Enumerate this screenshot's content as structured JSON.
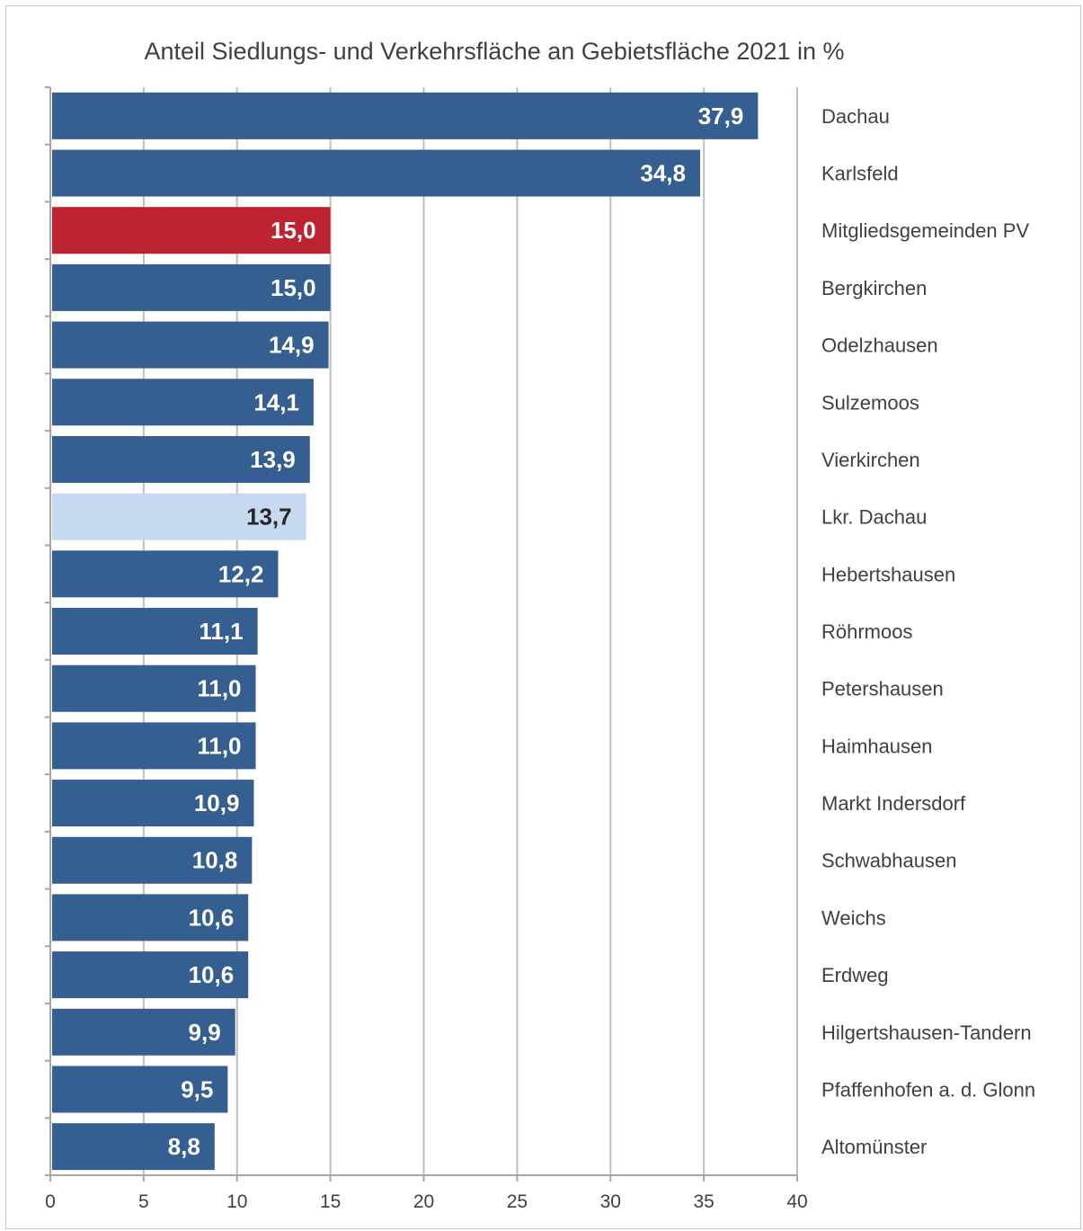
{
  "chart_data": {
    "type": "bar",
    "orientation": "horizontal",
    "title": "Anteil Siedlungs- und Verkehrsfläche an Gebietsfläche 2021 in %",
    "categories": [
      "Dachau",
      "Karlsfeld",
      "Mitgliedsgemeinden PV",
      "Bergkirchen",
      "Odelzhausen",
      "Sulzemoos",
      "Vierkirchen",
      "Lkr. Dachau",
      "Hebertshausen",
      "Röhrmoos",
      "Petershausen",
      "Haimhausen",
      "Markt Indersdorf",
      "Schwabhausen",
      "Weichs",
      "Erdweg",
      "Hilgertshausen-Tandern",
      "Pfaffenhofen a. d. Glonn",
      "Altomünster"
    ],
    "values": [
      37.9,
      34.8,
      15.0,
      15.0,
      14.9,
      14.1,
      13.9,
      13.7,
      12.2,
      11.1,
      11.0,
      11.0,
      10.9,
      10.8,
      10.6,
      10.6,
      9.9,
      9.5,
      8.8
    ],
    "value_labels": [
      "37,9",
      "34,8",
      "15,0",
      "15,0",
      "14,9",
      "14,1",
      "13,9",
      "13,7",
      "12,2",
      "11,1",
      "11,0",
      "11,0",
      "10,9",
      "10,8",
      "10,6",
      "10,6",
      "9,9",
      "9,5",
      "8,8"
    ],
    "bar_colors": [
      "#355f91",
      "#355f91",
      "#be2332",
      "#355f91",
      "#355f91",
      "#355f91",
      "#355f91",
      "#c6d9f0",
      "#355f91",
      "#355f91",
      "#355f91",
      "#355f91",
      "#355f91",
      "#355f91",
      "#355f91",
      "#355f91",
      "#355f91",
      "#355f91",
      "#355f91"
    ],
    "label_colors": [
      "#ffffff",
      "#ffffff",
      "#ffffff",
      "#ffffff",
      "#ffffff",
      "#ffffff",
      "#ffffff",
      "#262626",
      "#ffffff",
      "#ffffff",
      "#ffffff",
      "#ffffff",
      "#ffffff",
      "#ffffff",
      "#ffffff",
      "#ffffff",
      "#ffffff",
      "#ffffff",
      "#ffffff"
    ],
    "xlim": [
      0,
      40
    ],
    "xticks": [
      0,
      5,
      10,
      15,
      20,
      25,
      30,
      35,
      40
    ],
    "grid": true,
    "gridline_color": "#bfbfbf"
  }
}
